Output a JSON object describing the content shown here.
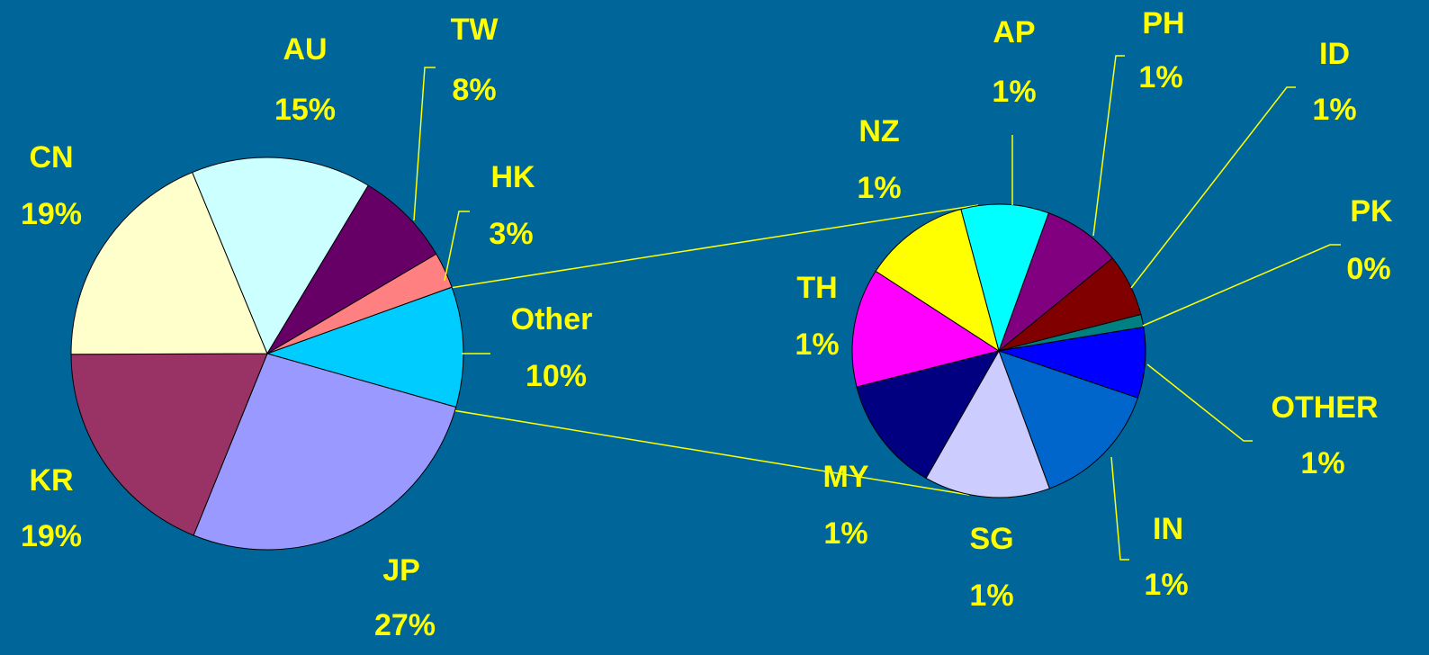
{
  "chart_data": [
    {
      "type": "pie",
      "categories": [
        "Other",
        "JP",
        "KR",
        "CN",
        "AU",
        "TW",
        "HK"
      ],
      "values": [
        10,
        27,
        19,
        19,
        15,
        8,
        3
      ],
      "value_labels": [
        "10%",
        "27%",
        "19%",
        "19%",
        "15%",
        "8%",
        "3%"
      ],
      "colors": [
        "#00ccff",
        "#9999ff",
        "#993366",
        "#ffffcc",
        "#ccffff",
        "#660066",
        "#ff8080"
      ]
    },
    {
      "type": "pie",
      "categories": [
        "AP",
        "PH",
        "ID",
        "PK",
        "OTHER",
        "IN",
        "SG",
        "MY",
        "TH",
        "NZ"
      ],
      "values": [
        0.97,
        0.86,
        0.69,
        0.14,
        0.78,
        1.42,
        1.39,
        1.28,
        1.31,
        1.17
      ],
      "value_labels": [
        "1%",
        "1%",
        "1%",
        "0%",
        "1%",
        "1%",
        "1%",
        "1%",
        "1%",
        "1%"
      ],
      "colors": [
        "#00ffff",
        "#800080",
        "#800000",
        "#008080",
        "#0000ff",
        "#0066cc",
        "#ccccff",
        "#000080",
        "#ff00ff",
        "#ffff00"
      ]
    }
  ]
}
